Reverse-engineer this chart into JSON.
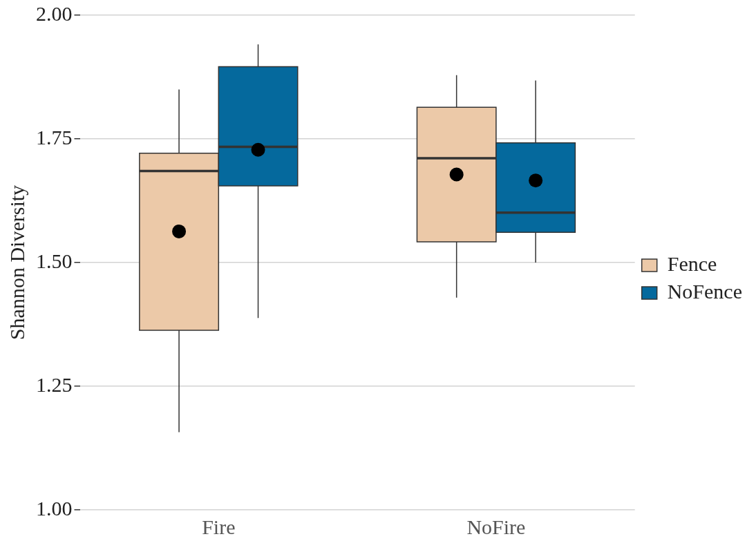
{
  "chart_data": {
    "type": "box",
    "ylabel": "Shannon Diversity",
    "categories": [
      "Fire",
      "NoFire"
    ],
    "series": [
      {
        "name": "Fence",
        "color": "#ecc9a8",
        "boxes": [
          {
            "low": 1.157,
            "q1": 1.363,
            "median": 1.685,
            "q3": 1.721,
            "high": 1.85,
            "mean": 1.563
          },
          {
            "low": 1.429,
            "q1": 1.542,
            "median": 1.711,
            "q3": 1.814,
            "high": 1.879,
            "mean": 1.678
          }
        ]
      },
      {
        "name": "NoFence",
        "color": "#05699d",
        "boxes": [
          {
            "low": 1.388,
            "q1": 1.655,
            "median": 1.734,
            "q3": 1.896,
            "high": 1.941,
            "mean": 1.728
          },
          {
            "low": 1.5,
            "q1": 1.561,
            "median": 1.601,
            "q3": 1.742,
            "high": 1.868,
            "mean": 1.666
          }
        ]
      }
    ],
    "ylim": [
      1,
      2
    ],
    "yticks": [
      {
        "value": 1,
        "label": "1.00"
      },
      {
        "value": 1.25,
        "label": "1.25"
      },
      {
        "value": 1.5,
        "label": "1.50"
      },
      {
        "value": 1.75,
        "label": "1.75"
      },
      {
        "value": 2,
        "label": "2.00"
      }
    ],
    "grid": "y",
    "legend": "right"
  }
}
